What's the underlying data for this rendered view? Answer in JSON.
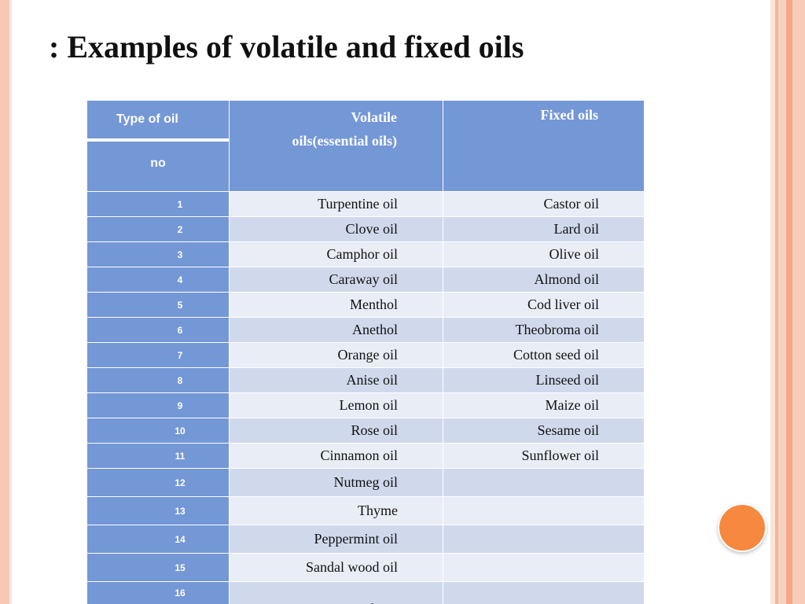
{
  "slide": {
    "title": ": Examples of volatile and fixed oils"
  },
  "table": {
    "header": {
      "type_of_oil": "Type of oil",
      "no": "no",
      "volatile_line1": "Volatile",
      "volatile_line2": "oils(essential oils)",
      "fixed": "Fixed oils"
    },
    "rows": [
      {
        "no": "1",
        "volatile": "Turpentine oil",
        "fixed": "Castor oil"
      },
      {
        "no": "2",
        "volatile": "Clove oil",
        "fixed": "Lard oil"
      },
      {
        "no": "3",
        "volatile": "Camphor oil",
        "fixed": "Olive oil"
      },
      {
        "no": "4",
        "volatile": "Caraway oil",
        "fixed": "Almond oil"
      },
      {
        "no": "5",
        "volatile": "Menthol",
        "fixed": "Cod liver oil"
      },
      {
        "no": "6",
        "volatile": "Anethol",
        "fixed": "Theobroma oil"
      },
      {
        "no": "7",
        "volatile": "Orange oil",
        "fixed": "Cotton seed oil"
      },
      {
        "no": "8",
        "volatile": "Anise oil",
        "fixed": "Linseed oil"
      },
      {
        "no": "9",
        "volatile": "Lemon oil",
        "fixed": "Maize oil"
      },
      {
        "no": "10",
        "volatile": "Rose oil",
        "fixed": "Sesame oil"
      },
      {
        "no": "11",
        "volatile": "Cinnamon oil",
        "fixed": "Sunflower oil"
      },
      {
        "no": "12",
        "volatile": "Nutmeg oil",
        "fixed": ""
      },
      {
        "no": "13",
        "volatile": "Thyme",
        "fixed": ""
      },
      {
        "no": "14",
        "volatile": "Peppermint oil",
        "fixed": ""
      },
      {
        "no": "15",
        "volatile": "Sandal wood oil",
        "fixed": ""
      },
      {
        "no": "16",
        "volatile": "Terebene",
        "fixed": ""
      }
    ]
  },
  "colors": {
    "header_blue": "#7497d6",
    "row_light": "#e9edf6",
    "row_dark": "#d0d9ec",
    "accent_orange": "#f7883f",
    "border_peach": "#f6c9b5"
  }
}
